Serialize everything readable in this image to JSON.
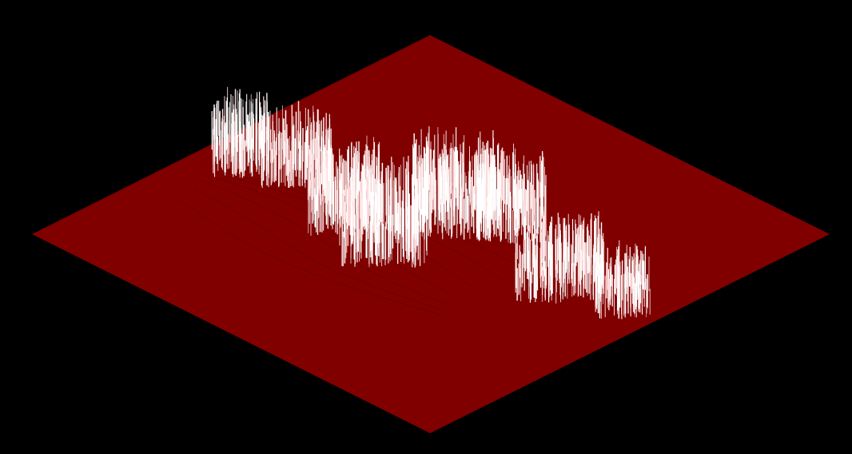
{
  "scene": {
    "background_color": "#000000",
    "terrain_color": "#800000",
    "terrain_shade_color": "#7a0000",
    "contour_color": "#3a0000",
    "spike_color": "#ffffff",
    "spike_tint_color": "#ffd6d6",
    "projection": "isometric"
  }
}
